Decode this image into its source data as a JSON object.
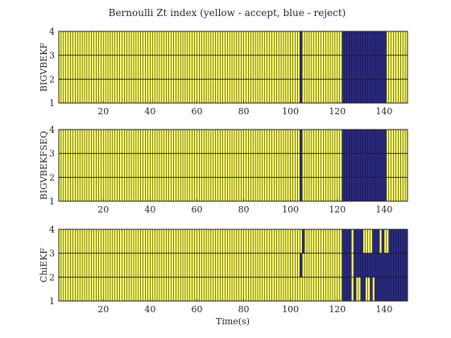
{
  "title": "Bernoulli Zt index (yellow - accept, blue - reject)",
  "xlabel": "Time(s)",
  "colors": {
    "accept": "#ffff66",
    "reject": "#2a2a8c",
    "edge": "#1a1a1a",
    "background": "#ffffff"
  },
  "chart_data": [
    {
      "type": "heatmap",
      "ylabel": "BIGVBEKF",
      "xlim": [
        1,
        150
      ],
      "ylim": [
        1,
        4
      ],
      "xticks": [
        20,
        40,
        60,
        80,
        100,
        120,
        140
      ],
      "yticks": [
        1,
        2,
        3,
        4
      ],
      "rows": 3,
      "reject_ranges": [
        {
          "row": 1,
          "t_start": 104,
          "t_end": 105
        },
        {
          "row": 1,
          "t_start": 122,
          "t_end": 141
        },
        {
          "row": 2,
          "t_start": 104,
          "t_end": 105
        },
        {
          "row": 2,
          "t_start": 122,
          "t_end": 141
        },
        {
          "row": 3,
          "t_start": 104,
          "t_end": 105
        },
        {
          "row": 3,
          "t_start": 122,
          "t_end": 141
        }
      ]
    },
    {
      "type": "heatmap",
      "ylabel": "BIGVBEKFSEQ",
      "xlim": [
        1,
        150
      ],
      "ylim": [
        1,
        4
      ],
      "xticks": [
        20,
        40,
        60,
        80,
        100,
        120,
        140
      ],
      "yticks": [
        1,
        2,
        3,
        4
      ],
      "rows": 3,
      "reject_ranges": [
        {
          "row": 1,
          "t_start": 104,
          "t_end": 105
        },
        {
          "row": 1,
          "t_start": 122,
          "t_end": 141
        },
        {
          "row": 2,
          "t_start": 104,
          "t_end": 105
        },
        {
          "row": 2,
          "t_start": 122,
          "t_end": 141
        },
        {
          "row": 3,
          "t_start": 104,
          "t_end": 105
        },
        {
          "row": 3,
          "t_start": 122,
          "t_end": 141
        }
      ]
    },
    {
      "type": "heatmap",
      "ylabel": "ChiEKF",
      "xlim": [
        1,
        150
      ],
      "ylim": [
        1,
        4
      ],
      "xticks": [
        20,
        40,
        60,
        80,
        100,
        120,
        140
      ],
      "yticks": [
        1,
        2,
        3,
        4
      ],
      "rows": 3,
      "reject_ranges": [
        {
          "row": 1,
          "t_start": 122,
          "t_end": 150
        },
        {
          "row": 2,
          "t_start": 104,
          "t_end": 105
        },
        {
          "row": 2,
          "t_start": 122,
          "t_end": 126
        },
        {
          "row": 2,
          "t_start": 127,
          "t_end": 150
        },
        {
          "row": 3,
          "t_start": 122,
          "t_end": 126
        },
        {
          "row": 3,
          "t_start": 127,
          "t_end": 150
        },
        {
          "row": 3,
          "t_start": 105,
          "t_end": 106
        }
      ],
      "accept_patches": [
        {
          "row": 1,
          "t_start": 126,
          "t_end": 127
        },
        {
          "row": 1,
          "t_start": 128,
          "t_end": 130
        },
        {
          "row": 1,
          "t_start": 132,
          "t_end": 134
        },
        {
          "row": 1,
          "t_start": 135,
          "t_end": 136
        },
        {
          "row": 2,
          "t_start": 126,
          "t_end": 127
        },
        {
          "row": 3,
          "t_start": 126,
          "t_end": 127
        },
        {
          "row": 3,
          "t_start": 131,
          "t_end": 135
        },
        {
          "row": 3,
          "t_start": 138,
          "t_end": 139
        },
        {
          "row": 3,
          "t_start": 140,
          "t_end": 142
        }
      ]
    }
  ]
}
